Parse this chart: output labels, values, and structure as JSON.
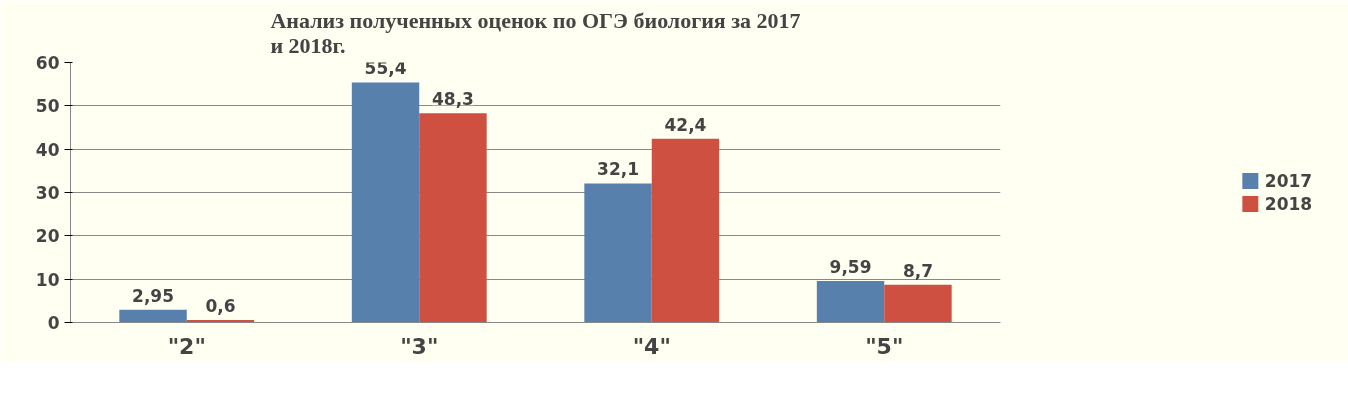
{
  "chart_data": {
    "type": "bar",
    "title": "Анализ полученных оценок по ОГЭ биология за 2017\nи 2018г.",
    "categories": [
      "\"2\"",
      "\"3\"",
      "\"4\"",
      "\"5\""
    ],
    "series": [
      {
        "name": "2017",
        "color": "#5880ad",
        "values": [
          2.95,
          55.4,
          32.1,
          9.59
        ],
        "value_labels": [
          "2,95",
          "55,4",
          "32,1",
          "9,59"
        ]
      },
      {
        "name": "2018",
        "color": "#cd5041",
        "values": [
          0.6,
          48.3,
          42.4,
          8.7
        ],
        "value_labels": [
          "0,6",
          "48,3",
          "42,4",
          "8,7"
        ]
      }
    ],
    "ylim": [
      0,
      60
    ],
    "yticks": [
      0,
      10,
      20,
      30,
      40,
      50,
      60
    ],
    "grid": "y",
    "legend": "right"
  }
}
